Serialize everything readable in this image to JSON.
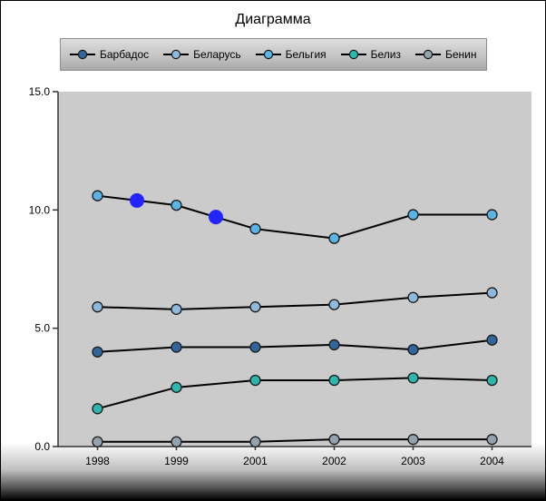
{
  "chart_data": {
    "type": "line",
    "title": "Диаграмма",
    "x_labels": [
      "1998",
      "1999",
      "2001",
      "2002",
      "2003",
      "2004"
    ],
    "yticks": [
      0,
      5,
      10,
      15
    ],
    "ytick_labels": [
      "0.0",
      "5.0",
      "10.0",
      "15.0"
    ],
    "ylim": [
      0,
      15
    ],
    "grid": false,
    "legend_position": "top",
    "plot_bg_color": "#cbcbcb",
    "axis_color": "#333333",
    "line_color": "#000000",
    "series": [
      {
        "name": "Барбадос",
        "color": "#31669c",
        "values": [
          4.0,
          4.2,
          4.2,
          4.3,
          4.1,
          4.5
        ]
      },
      {
        "name": "Беларусь",
        "color": "#8db9dd",
        "values": [
          5.9,
          5.8,
          5.9,
          6.0,
          6.3,
          6.5
        ]
      },
      {
        "name": "Бельгия",
        "color": "#5ab4e5",
        "x": [
          0,
          0.5,
          1,
          1.5,
          2,
          3,
          4,
          5
        ],
        "values": [
          10.6,
          10.4,
          10.2,
          9.7,
          9.2,
          8.8,
          9.8,
          9.8
        ],
        "highlight_indices": [
          1,
          3
        ],
        "highlight_color": "#2424ff"
      },
      {
        "name": "Белиз",
        "color": "#2cb6ae",
        "values": [
          1.6,
          2.5,
          2.8,
          2.8,
          2.9,
          2.8
        ]
      },
      {
        "name": "Бенин",
        "color": "#93a2ad",
        "values": [
          0.2,
          0.2,
          0.2,
          0.3,
          0.3,
          0.3
        ]
      }
    ]
  }
}
